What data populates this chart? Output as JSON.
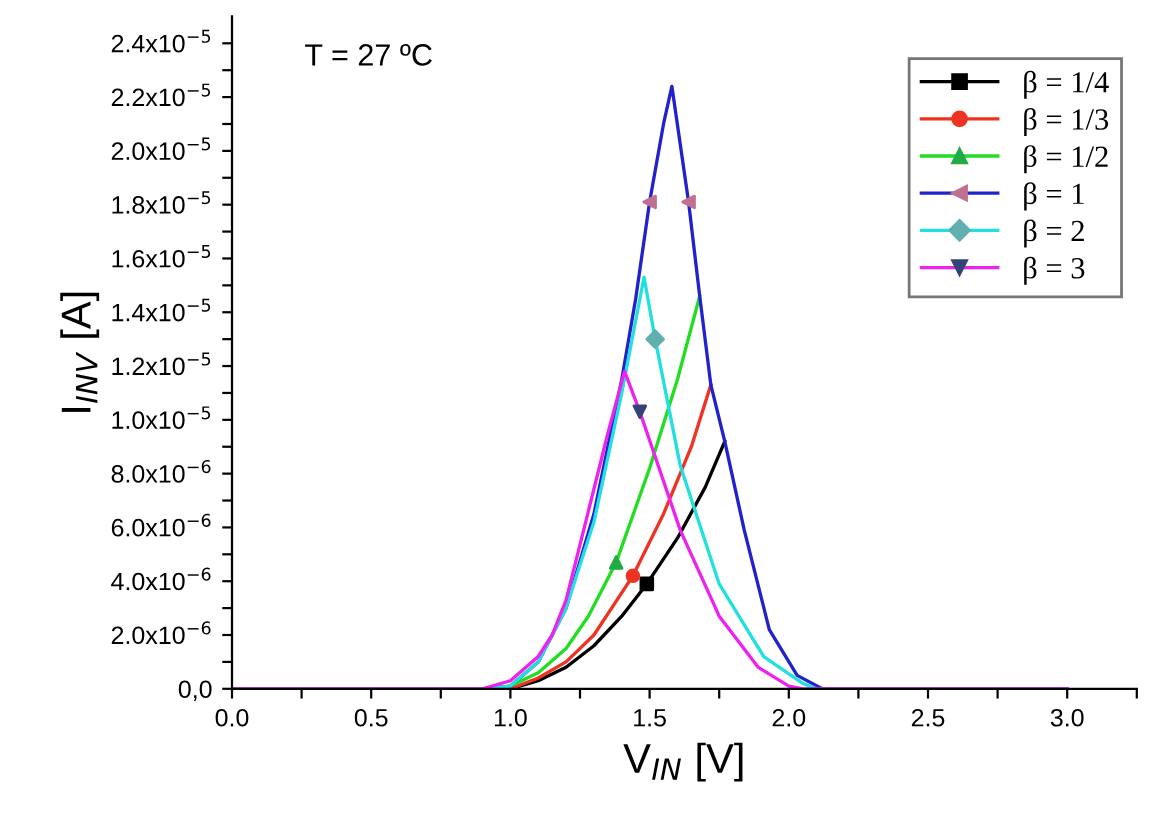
{
  "chart_data": {
    "type": "line",
    "xlabel": "V$_{IN}$ [V]",
    "ylabel": "I$_{INV}$ [A]",
    "annotations": [
      "T = 27 ºC"
    ],
    "xlim": [
      0,
      3.25
    ],
    "ylim": [
      0,
      2.5e-05
    ],
    "xticks": [
      {
        "value": 0,
        "label": "0.0"
      },
      {
        "value": 0.25,
        "label": null
      },
      0.5,
      {
        "value": 0.75,
        "label": null
      },
      {
        "value": 1,
        "label": "1.0"
      },
      {
        "value": 1.25,
        "label": null
      },
      1.5,
      {
        "value": 1.75,
        "label": null
      },
      {
        "value": 2,
        "label": "2.0"
      },
      {
        "value": 2.25,
        "label": null
      },
      2.5,
      {
        "value": 2.75,
        "label": null
      },
      {
        "value": 3,
        "label": "3.0"
      },
      {
        "value": 3.25,
        "label": null
      }
    ],
    "yticks": [
      {
        "value": 0,
        "label": "0,0"
      },
      {
        "value": 1e-06,
        "label": null
      },
      {
        "value": 2e-06,
        "label": "2.0x10$^{−6}$"
      },
      {
        "value": 3e-06,
        "label": null
      },
      {
        "value": 4e-06,
        "label": "4.0x10$^{−6}$"
      },
      {
        "value": 5e-06,
        "label": null
      },
      {
        "value": 6e-06,
        "label": "6.0x10$^{−6}$"
      },
      {
        "value": 7e-06,
        "label": null
      },
      {
        "value": 8e-06,
        "label": "8.0x10$^{−6}$"
      },
      {
        "value": 9e-06,
        "label": null
      },
      {
        "value": 1e-05,
        "label": "1.0x10$^{−5}$"
      },
      {
        "value": 1.1e-05,
        "label": null
      },
      {
        "value": 1.2e-05,
        "label": "1.2x10$^{−5}$"
      },
      {
        "value": 1.3e-05,
        "label": null
      },
      {
        "value": 1.4e-05,
        "label": "1.4x10$^{−5}$"
      },
      {
        "value": 1.5e-05,
        "label": null
      },
      {
        "value": 1.6e-05,
        "label": "1.6x10$^{−5}$"
      },
      {
        "value": 1.7e-05,
        "label": null
      },
      {
        "value": 1.8e-05,
        "label": "1.8x10$^{−5}$"
      },
      {
        "value": 1.9e-05,
        "label": null
      },
      {
        "value": 2e-05,
        "label": "2.0x10$^{−5}$"
      },
      {
        "value": 2.1e-05,
        "label": null
      },
      {
        "value": 2.2e-05,
        "label": "2.2x10$^{−5}$"
      },
      {
        "value": 2.3e-05,
        "label": null
      },
      {
        "value": 2.4e-05,
        "label": "2.4x10$^{−5}$"
      }
    ],
    "legend": "top right",
    "line_style": "solid",
    "series": [
      {
        "color": "#000000",
        "x": [
          1.0,
          1.1,
          1.2,
          1.3,
          1.4,
          1.49,
          1.6,
          1.7,
          1.77
        ],
        "values": [
          0,
          3e-07,
          8e-07,
          1.6e-06,
          2.7e-06,
          3.9e-06,
          5.6e-06,
          7.5e-06,
          9.2e-06
        ]
      },
      {
        "color": "#ee3322",
        "x": [
          1.0,
          1.1,
          1.2,
          1.3,
          1.44,
          1.55,
          1.65,
          1.72
        ],
        "values": [
          0,
          4e-07,
          1e-06,
          2e-06,
          4.2e-06,
          6.5e-06,
          9e-06,
          1.13e-05
        ]
      },
      {
        "color": "#22dd22",
        "x": [
          1.0,
          1.1,
          1.2,
          1.28,
          1.38,
          1.5,
          1.6,
          1.68
        ],
        "values": [
          1e-07,
          6e-07,
          1.5e-06,
          2.7e-06,
          4.7e-06,
          8.2e-06,
          1.15e-05,
          1.46e-05
        ]
      },
      {
        "color": "#2222cc",
        "x": [
          0,
          0.9,
          1.0,
          1.1,
          1.2,
          1.3,
          1.4,
          1.45,
          1.5,
          1.55,
          1.58,
          1.64,
          1.68,
          1.72,
          1.77,
          1.84,
          1.93,
          2.03,
          2.12,
          3.0
        ],
        "values": [
          0,
          0,
          1e-07,
          1e-06,
          3e-06,
          6.5e-06,
          1.15e-05,
          1.45e-05,
          1.81e-05,
          2.1e-05,
          2.24e-05,
          1.81e-05,
          1.46e-05,
          1.13e-05,
          9.2e-06,
          5.9e-06,
          2.2e-06,
          5e-07,
          0,
          0
        ]
      },
      {
        "color": "#22e0e0",
        "x": [
          0,
          0.9,
          1.0,
          1.1,
          1.2,
          1.3,
          1.4,
          1.48,
          1.52,
          1.61,
          1.75,
          1.91,
          2.05,
          2.1,
          3.0
        ],
        "values": [
          0,
          0,
          1e-07,
          1e-06,
          3e-06,
          6.2e-06,
          1.1e-05,
          1.53e-05,
          1.3e-05,
          8.3e-06,
          3.9e-06,
          1.2e-06,
          2e-07,
          0,
          0
        ]
      },
      {
        "color": "#ee22ee",
        "x": [
          0,
          0.9,
          1.0,
          1.1,
          1.15,
          1.2,
          1.28,
          1.35,
          1.41,
          1.465,
          1.61,
          1.75,
          1.89,
          2.0,
          2.05,
          3.0
        ],
        "values": [
          0,
          0,
          3e-07,
          1.2e-06,
          2e-06,
          3.3e-06,
          6.6e-06,
          9.5e-06,
          1.18e-05,
          1.03e-05,
          5.9e-06,
          2.7e-06,
          8e-07,
          1e-07,
          0,
          0
        ]
      },
      {
        "type": "scatter",
        "name": "β = 1/4",
        "color": "#000000",
        "marker": "square",
        "x": [
          1.49
        ],
        "values": [
          3.9e-06
        ]
      },
      {
        "type": "scatter",
        "name": "β = 1/3",
        "color": "#ee3322",
        "marker": "circle",
        "x": [
          1.44
        ],
        "values": [
          4.2e-06
        ]
      },
      {
        "type": "scatter",
        "name": "β = 1/2",
        "color": "#22aa44",
        "marker": "triangle",
        "x": [
          1.38
        ],
        "values": [
          4.7e-06
        ]
      },
      {
        "type": "scatter",
        "name": "β = 1",
        "color": "#c07090",
        "marker": "triangle-left",
        "x": [
          1.5,
          1.64
        ],
        "values": [
          1.81e-05,
          1.81e-05
        ]
      },
      {
        "type": "scatter",
        "name": "β = 2",
        "color": "#60b0b0",
        "marker": "diamond",
        "x": [
          1.52
        ],
        "values": [
          1.3e-05
        ]
      },
      {
        "type": "scatter",
        "name": "β = 3",
        "color": "#334477",
        "marker": "triangle-down",
        "x": [
          1.465
        ],
        "values": [
          1.03e-05
        ]
      }
    ]
  }
}
